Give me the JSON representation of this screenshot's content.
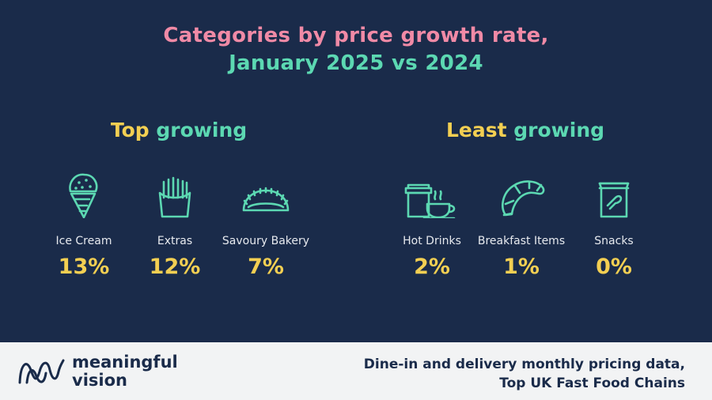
{
  "title_line1": "Categories by price growth rate,",
  "title_line2": "January 2025 vs 2024",
  "top": {
    "word1": "Top",
    "word2": "growing"
  },
  "least": {
    "word1": "Least",
    "word2": "growing"
  },
  "chart_data": {
    "type": "table",
    "title": "Categories by price growth rate, January 2025 vs 2024",
    "groups": [
      {
        "name": "Top growing",
        "items": [
          {
            "label": "Ice Cream",
            "value": "13%",
            "icon": "ice-cream-icon"
          },
          {
            "label": "Extras",
            "value": "12%",
            "icon": "fries-icon"
          },
          {
            "label": "Savoury Bakery",
            "value": "7%",
            "icon": "pasty-icon"
          }
        ]
      },
      {
        "name": "Least growing",
        "items": [
          {
            "label": "Hot Drinks",
            "value": "2%",
            "icon": "hot-drinks-icon"
          },
          {
            "label": "Breakfast Items",
            "value": "1%",
            "icon": "croissant-icon"
          },
          {
            "label": "Snacks",
            "value": "0%",
            "icon": "snack-bag-icon"
          }
        ]
      }
    ]
  },
  "footer": {
    "brand_line1": "meaningful",
    "brand_line2": "vision",
    "source_line1": "Dine-in and delivery monthly pricing data,",
    "source_line2": "Top UK Fast Food Chains"
  },
  "colors": {
    "background": "#1a2b4a",
    "accent_pink": "#f08aa6",
    "accent_green": "#5cd8b2",
    "accent_yellow": "#f3cf52",
    "footer_bg": "#f2f3f4"
  }
}
